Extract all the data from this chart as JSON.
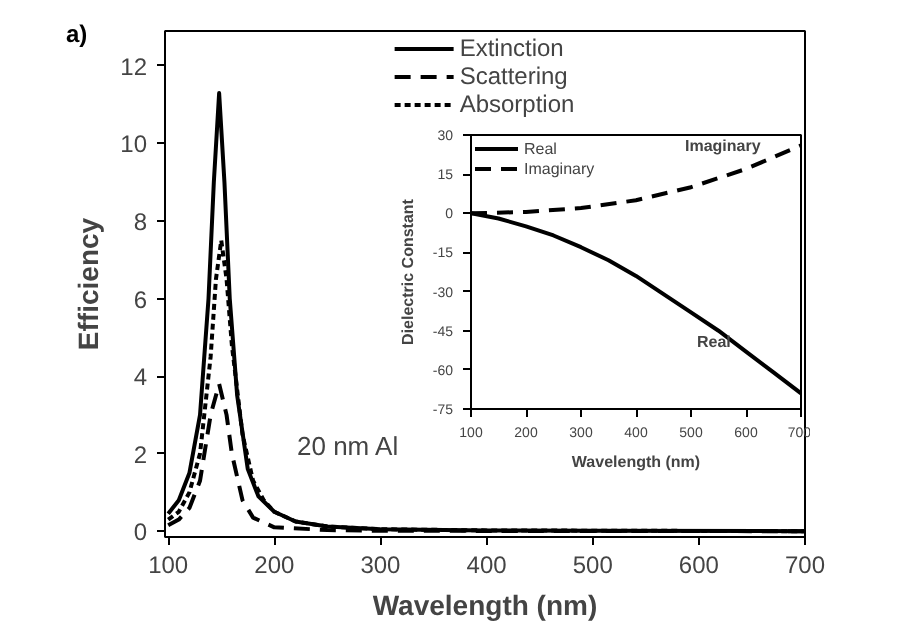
{
  "chart_data": [
    {
      "type": "line",
      "title": "a)",
      "xlabel": "Wavelength (nm)",
      "ylabel": "Efficiency",
      "xlim": [
        97,
        700
      ],
      "ylim": [
        -0.15,
        12.9
      ],
      "xticks": [
        100,
        200,
        300,
        400,
        500,
        600,
        700
      ],
      "yticks": [
        0,
        2,
        4,
        6,
        8,
        10,
        12
      ],
      "grid": false,
      "legend": "top",
      "annotations": [
        "20 nm Al"
      ],
      "series": [
        {
          "name": "Extinction",
          "color": "#000000",
          "line_style": "solid",
          "x": [
            100,
            110,
            120,
            130,
            138,
            143,
            148,
            153,
            158,
            165,
            175,
            185,
            200,
            220,
            250,
            300,
            400,
            500,
            700
          ],
          "values": [
            0.45,
            0.8,
            1.5,
            3,
            6,
            9,
            11.3,
            9,
            6,
            3.5,
            1.6,
            0.9,
            0.5,
            0.25,
            0.12,
            0.05,
            0.02,
            0.01,
            0
          ]
        },
        {
          "name": "Scattering",
          "color": "#000000",
          "line_style": "dashed",
          "x": [
            100,
            110,
            120,
            130,
            140,
            148,
            155,
            160,
            170,
            180,
            200,
            250,
            300,
            700
          ],
          "values": [
            0.15,
            0.3,
            0.6,
            1.3,
            3,
            3.8,
            3,
            2,
            0.8,
            0.35,
            0.1,
            0.03,
            0.01,
            0
          ]
        },
        {
          "name": "Absorption",
          "color": "#000000",
          "line_style": "dotted",
          "x": [
            100,
            110,
            120,
            130,
            140,
            145,
            150,
            155,
            160,
            170,
            180,
            190,
            200,
            220,
            250,
            300,
            400,
            700
          ],
          "values": [
            0.3,
            0.5,
            1,
            2,
            4.5,
            6.5,
            7.5,
            6.5,
            4.8,
            2.5,
            1.3,
            0.8,
            0.5,
            0.25,
            0.12,
            0.05,
            0.02,
            0
          ]
        }
      ]
    },
    {
      "type": "line",
      "xlabel": "Wavelength (nm)",
      "ylabel": "Dielectric Constant",
      "xlim": [
        100,
        700
      ],
      "ylim": [
        -75,
        30
      ],
      "xticks": [
        100,
        200,
        300,
        400,
        500,
        600,
        700
      ],
      "yticks": [
        -75,
        -60,
        -45,
        -30,
        -15,
        0,
        15,
        30
      ],
      "grid": false,
      "legend": "top left",
      "annotations": [
        "Real",
        "Imaginary"
      ],
      "series": [
        {
          "name": "Real",
          "color": "#000000",
          "line_style": "solid",
          "x": [
            100,
            150,
            200,
            250,
            300,
            350,
            400,
            450,
            500,
            550,
            600,
            650,
            700
          ],
          "values": [
            0,
            -2,
            -5,
            -8.5,
            -13,
            -18,
            -24,
            -31,
            -38,
            -45,
            -53,
            -61,
            -69
          ]
        },
        {
          "name": "Imaginary",
          "color": "#000000",
          "line_style": "dashed",
          "x": [
            100,
            200,
            300,
            400,
            500,
            600,
            700
          ],
          "values": [
            0,
            0.5,
            2,
            5,
            10,
            17,
            26
          ]
        }
      ]
    }
  ]
}
